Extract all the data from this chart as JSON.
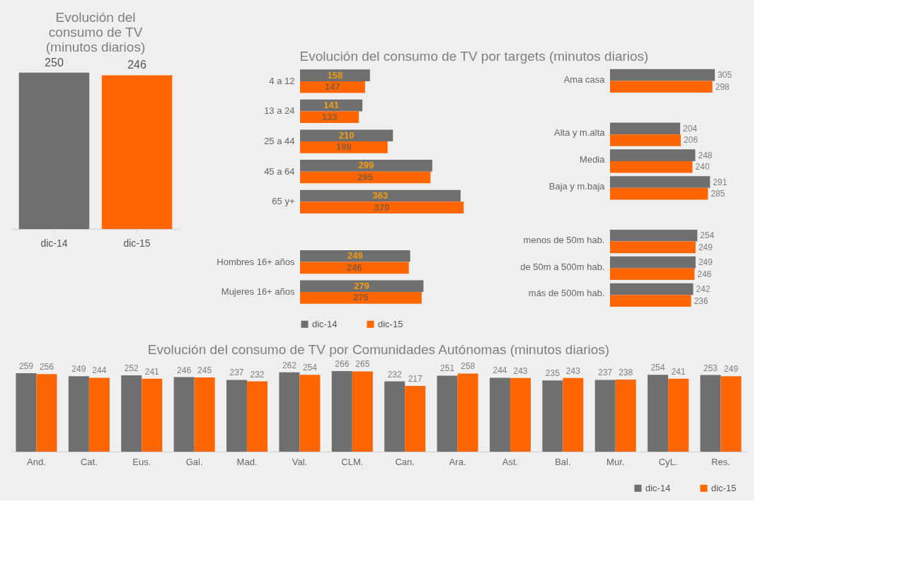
{
  "chart_data": [
    {
      "type": "bar",
      "title": "Evolución del consumo de TV (minutos diarios)",
      "categories": [
        "dic-14",
        "dic-15"
      ],
      "values": [
        250,
        246
      ],
      "colors": [
        "#6f6f6f",
        "#ff6600"
      ],
      "data_labels": true
    },
    {
      "type": "bar",
      "orientation": "horizontal",
      "title": "Evolución del consumo de TV por targets (minutos diarios)",
      "categories": [
        "4 a 12",
        "13 a 24",
        "25 a 44",
        "45 a 64",
        "65 y+",
        null,
        "Hombres 16+ años",
        "Mujeres 16+ años"
      ],
      "series": [
        {
          "name": "dic-14",
          "color": "#6f6f6f",
          "values": [
            158,
            141,
            210,
            299,
            363,
            null,
            249,
            279
          ]
        },
        {
          "name": "dic-15",
          "color": "#ff6600",
          "values": [
            147,
            133,
            198,
            295,
            370,
            null,
            246,
            275
          ]
        }
      ],
      "data_labels": true,
      "legend": "bottom"
    },
    {
      "type": "bar",
      "orientation": "horizontal",
      "categories": [
        "Ama casa",
        null,
        "Alta y m.alta",
        "Media",
        "Baja y m.baja",
        null,
        "menos de 50m hab.",
        "de 50m a 500m hab.",
        "más de 500m hab."
      ],
      "series": [
        {
          "name": "dic-14",
          "color": "#6f6f6f",
          "values": [
            305,
            null,
            204,
            248,
            291,
            null,
            254,
            249,
            242
          ]
        },
        {
          "name": "dic-15",
          "color": "#ff6600",
          "values": [
            298,
            null,
            206,
            240,
            285,
            null,
            249,
            246,
            236
          ]
        }
      ],
      "data_labels": true,
      "legend": "bottom"
    },
    {
      "type": "bar",
      "title": "Evolución del consumo de TV por Comunidades Autónomas (minutos diarios)",
      "categories": [
        "And.",
        "Cat.",
        "Eus.",
        "Gal.",
        "Mad.",
        "Val.",
        "CLM.",
        "Can.",
        "Ara.",
        "Ast.",
        "Bal.",
        "Mur.",
        "CyL.",
        "Res."
      ],
      "series": [
        {
          "name": "dic-14",
          "color": "#6f6f6f",
          "values": [
            259,
            249,
            252,
            246,
            237,
            262,
            266,
            232,
            251,
            244,
            235,
            237,
            254,
            253
          ]
        },
        {
          "name": "dic-15",
          "color": "#ff6600",
          "values": [
            256,
            244,
            241,
            245,
            232,
            254,
            265,
            217,
            258,
            243,
            243,
            238,
            241,
            249
          ]
        }
      ],
      "data_labels": true,
      "legend": "bottom right"
    }
  ]
}
